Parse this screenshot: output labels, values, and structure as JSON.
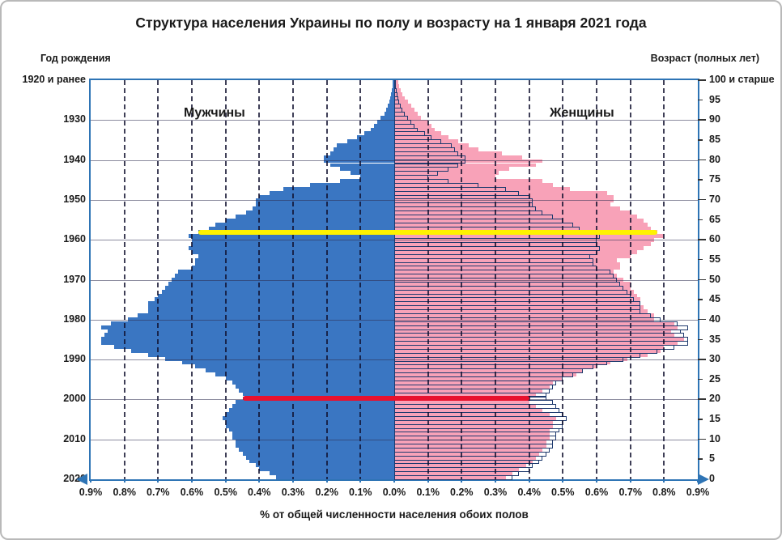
{
  "title": "Структура населения Украины по полу и возрасту на 1 января 2021 года",
  "left_axis_title": "Год рождения",
  "right_axis_title": "Возраст (полных лет)",
  "x_axis_title": "% от общей численности населения обоих полов",
  "legend": {
    "male": "Мужчины",
    "female": "Женщины"
  },
  "colors": {
    "male_fill": "#3a76c2",
    "female_fill": "#f8a2b8",
    "male_outline": "#1e3a6e",
    "plot_border": "#2e74b5",
    "marker_yellow": "#fff200",
    "marker_red": "#e8112d"
  },
  "chart_data": {
    "type": "bar",
    "subtype": "population-pyramid, single-year horizontal bars, males left / females right, male silhouette mirrored as outline over female side",
    "x_unit": "% of total population of both sexes",
    "x_max_pct": 0.9,
    "x_tick_labels": [
      "0.9%",
      "0.8%",
      "0.7%",
      "0.6%",
      "0.5%",
      "0.4%",
      "0.3%",
      "0.2%",
      "0.1%",
      "0.0%",
      "0.1%",
      "0.2%",
      "0.3%",
      "0.4%",
      "0.5%",
      "0.6%",
      "0.7%",
      "0.8%",
      "0.9%"
    ],
    "year_labels": [
      "1920 и ранее",
      "1930",
      "1940",
      "1950",
      "1960",
      "1970",
      "1980",
      "1990",
      "2000",
      "2010",
      "2020"
    ],
    "age_tick_labels": [
      "100 и старше",
      "95",
      "90",
      "85",
      "80",
      "75",
      "70",
      "65",
      "60",
      "55",
      "50",
      "45",
      "40",
      "35",
      "30",
      "25",
      "20",
      "15",
      "10",
      "5",
      "0"
    ],
    "ages_note": "values[i] = % of total population at age i, age 0 bottom row .. age 100+ top row",
    "series": [
      {
        "name": "Мужчины",
        "side": "left",
        "values": [
          0.35,
          0.37,
          0.4,
          0.41,
          0.43,
          0.44,
          0.45,
          0.46,
          0.47,
          0.47,
          0.48,
          0.48,
          0.49,
          0.5,
          0.5,
          0.51,
          0.5,
          0.49,
          0.48,
          0.47,
          0.45,
          0.45,
          0.46,
          0.47,
          0.48,
          0.5,
          0.53,
          0.56,
          0.59,
          0.63,
          0.68,
          0.73,
          0.78,
          0.83,
          0.87,
          0.87,
          0.86,
          0.85,
          0.87,
          0.84,
          0.79,
          0.76,
          0.73,
          0.73,
          0.73,
          0.71,
          0.7,
          0.69,
          0.68,
          0.67,
          0.66,
          0.65,
          0.64,
          0.6,
          0.59,
          0.59,
          0.58,
          0.6,
          0.61,
          0.6,
          0.6,
          0.61,
          0.58,
          0.55,
          0.53,
          0.5,
          0.47,
          0.44,
          0.42,
          0.41,
          0.41,
          0.4,
          0.37,
          0.33,
          0.25,
          0.16,
          0.1,
          0.13,
          0.16,
          0.19,
          0.21,
          0.21,
          0.19,
          0.18,
          0.17,
          0.14,
          0.11,
          0.09,
          0.07,
          0.06,
          0.05,
          0.04,
          0.03,
          0.025,
          0.02,
          0.015,
          0.012,
          0.009,
          0.007,
          0.005,
          0.004
        ]
      },
      {
        "name": "Женщины",
        "side": "right",
        "values": [
          0.33,
          0.35,
          0.37,
          0.39,
          0.41,
          0.42,
          0.43,
          0.44,
          0.45,
          0.45,
          0.46,
          0.46,
          0.46,
          0.47,
          0.47,
          0.48,
          0.46,
          0.44,
          0.42,
          0.4,
          0.4,
          0.42,
          0.44,
          0.46,
          0.47,
          0.5,
          0.54,
          0.56,
          0.6,
          0.64,
          0.69,
          0.75,
          0.79,
          0.8,
          0.84,
          0.86,
          0.83,
          0.82,
          0.84,
          0.83,
          0.77,
          0.77,
          0.75,
          0.74,
          0.73,
          0.73,
          0.72,
          0.71,
          0.7,
          0.7,
          0.68,
          0.66,
          0.65,
          0.67,
          0.67,
          0.66,
          0.7,
          0.72,
          0.74,
          0.76,
          0.77,
          0.8,
          0.78,
          0.76,
          0.75,
          0.74,
          0.72,
          0.7,
          0.67,
          0.64,
          0.65,
          0.65,
          0.63,
          0.52,
          0.47,
          0.44,
          0.3,
          0.31,
          0.34,
          0.42,
          0.44,
          0.38,
          0.32,
          0.25,
          0.22,
          0.19,
          0.16,
          0.14,
          0.12,
          0.11,
          0.1,
          0.08,
          0.07,
          0.06,
          0.05,
          0.04,
          0.03,
          0.025,
          0.02,
          0.015,
          0.012
        ]
      }
    ],
    "markers": [
      {
        "name": "cohort-1958-age-62",
        "age": 62,
        "color": "#fff200"
      },
      {
        "name": "cohort-2000-age-20",
        "age": 20,
        "color": "#e8112d"
      }
    ],
    "grid": {
      "vertical_dashed_every_pct": 0.1,
      "horizontal_every_years": 10
    },
    "legend_position": "inside plot, upper left and upper right"
  }
}
